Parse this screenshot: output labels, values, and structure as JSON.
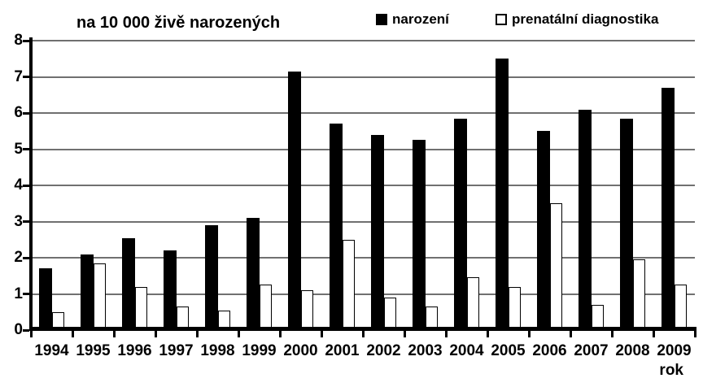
{
  "colors": {
    "background": "#ffffff",
    "bar_filled": "#000000",
    "bar_outlined_fill": "#ffffff",
    "bar_border": "#000000",
    "gridline": "#707070",
    "axis": "#000000",
    "text": "#000000"
  },
  "chart_data": {
    "type": "bar",
    "title": "na 10 000 živě narozených",
    "xlabel": "rok",
    "ylabel": "",
    "ylim": [
      0,
      8
    ],
    "yticks": [
      0,
      1,
      2,
      3,
      4,
      5,
      6,
      7,
      8
    ],
    "grid": true,
    "legend_position": "top",
    "categories": [
      "1994",
      "1995",
      "1996",
      "1997",
      "1998",
      "1999",
      "2000",
      "2001",
      "2002",
      "2003",
      "2004",
      "2005",
      "2006",
      "2007",
      "2008",
      "2009"
    ],
    "series": [
      {
        "name": "narození",
        "style": "filled-black",
        "values": [
          1.7,
          2.1,
          2.55,
          2.2,
          2.9,
          3.1,
          7.15,
          5.7,
          5.4,
          5.25,
          5.85,
          7.5,
          5.5,
          6.1,
          5.85,
          6.7
        ]
      },
      {
        "name": "prenatální diagnostika",
        "style": "white-outlined",
        "values": [
          0.5,
          1.85,
          1.2,
          0.65,
          0.55,
          1.25,
          1.1,
          2.5,
          0.9,
          0.65,
          1.45,
          1.2,
          3.5,
          0.7,
          1.95,
          1.25
        ]
      }
    ]
  }
}
